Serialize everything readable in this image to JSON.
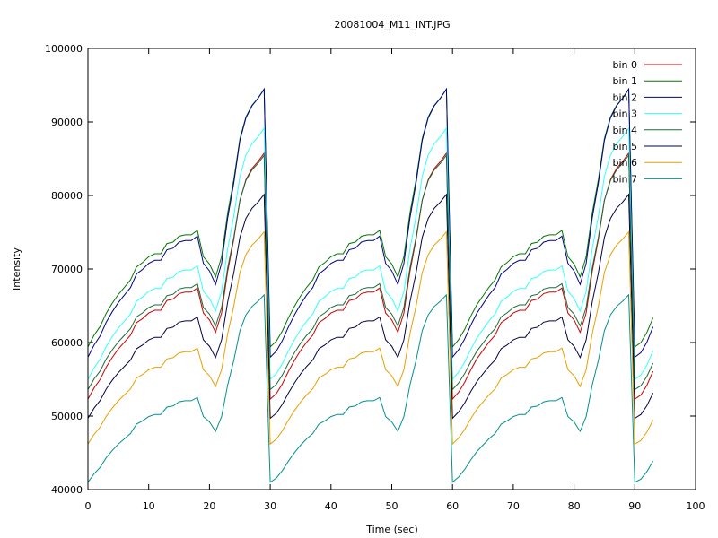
{
  "chart_data": {
    "type": "line",
    "title": "20081004_M11_INT.JPG",
    "xlabel": "Time (sec)",
    "ylabel": "Intensity",
    "xlim": [
      0,
      100
    ],
    "ylim": [
      40000,
      100000
    ],
    "xticks": [
      0,
      10,
      20,
      30,
      40,
      50,
      60,
      70,
      80,
      90,
      100
    ],
    "yticks": [
      40000,
      50000,
      60000,
      70000,
      80000,
      90000,
      100000
    ],
    "grid": false,
    "legend_position": "top-right",
    "x": [
      0,
      1,
      2,
      3,
      4,
      5,
      6,
      7,
      8,
      9,
      10,
      11,
      12,
      13,
      14,
      15,
      16,
      17,
      18,
      19,
      20,
      21,
      22,
      23,
      24,
      25,
      26,
      27,
      28,
      29,
      30,
      31,
      32,
      33,
      34,
      35,
      36,
      37,
      38,
      39,
      40,
      41,
      42,
      43,
      44,
      45,
      46,
      47,
      48,
      49,
      50,
      51,
      52,
      53,
      54,
      55,
      56,
      57,
      58,
      59,
      60,
      61,
      62,
      63,
      64,
      65,
      66,
      67,
      68,
      69,
      70,
      71,
      72,
      73,
      74,
      75,
      76,
      77,
      78,
      79,
      80,
      81,
      82,
      83,
      84,
      85,
      86,
      87,
      88,
      89,
      90,
      91,
      92,
      93
    ],
    "profile": [
      0.0,
      0.08,
      0.14,
      0.23,
      0.3,
      0.36,
      0.41,
      0.46,
      0.55,
      0.58,
      0.62,
      0.64,
      0.64,
      0.71,
      0.72,
      0.76,
      0.77,
      0.77,
      0.8,
      0.62,
      0.57,
      0.48,
      0.62,
      0.92,
      1.15,
      1.43,
      1.58,
      1.66,
      1.71,
      1.77,
      0.0,
      0.04,
      0.11,
      0.2,
      0.28,
      0.35,
      0.41,
      0.46,
      0.55,
      0.58,
      0.62,
      0.64,
      0.64,
      0.71,
      0.72,
      0.76,
      0.77,
      0.77,
      0.8,
      0.62,
      0.57,
      0.48,
      0.62,
      0.92,
      1.15,
      1.43,
      1.58,
      1.66,
      1.71,
      1.77,
      0.0,
      0.05,
      0.12,
      0.21,
      0.29,
      0.35,
      0.41,
      0.46,
      0.55,
      0.58,
      0.62,
      0.64,
      0.64,
      0.71,
      0.72,
      0.76,
      0.77,
      0.77,
      0.8,
      0.62,
      0.57,
      0.48,
      0.62,
      0.92,
      1.15,
      1.43,
      1.58,
      1.66,
      1.71,
      1.77,
      0.0,
      0.03,
      0.1,
      0.2
    ],
    "series": [
      {
        "name": "bin 0",
        "color": "#cc0000",
        "base": 52300,
        "amp": 18900
      },
      {
        "name": "bin 1",
        "color": "#007700",
        "base": 59400,
        "amp": 19800
      },
      {
        "name": "bin 2",
        "color": "#000088",
        "base": 58000,
        "amp": 20600
      },
      {
        "name": "bin 3",
        "color": "#33ffff",
        "base": 55000,
        "amp": 19300
      },
      {
        "name": "bin 4",
        "color": "#1a6b3a",
        "base": 53600,
        "amp": 18000
      },
      {
        "name": "bin 5",
        "color": "#000044",
        "base": 49700,
        "amp": 17200
      },
      {
        "name": "bin 6",
        "color": "#e8a000",
        "base": 46200,
        "amp": 16300
      },
      {
        "name": "bin 7",
        "color": "#009090",
        "base": 41000,
        "amp": 14400
      }
    ]
  }
}
